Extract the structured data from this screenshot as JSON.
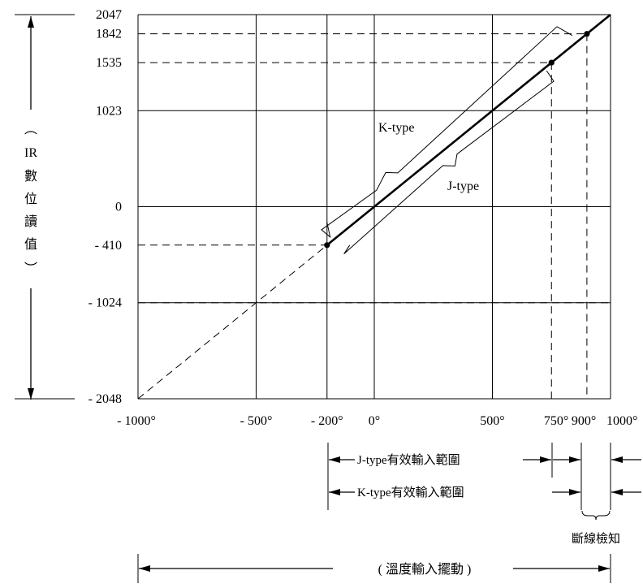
{
  "chart_data": {
    "type": "line",
    "xlabel": "( 溫度輸入擺動 )",
    "ylabel_chars": [
      "︵",
      "IR",
      "數",
      "位",
      "讀",
      "值",
      "︶"
    ],
    "xlim": [
      -1000,
      1000
    ],
    "ylim": [
      -2048,
      2047
    ],
    "x_ticks": [
      {
        "value": -1000,
        "label": "- 1000°"
      },
      {
        "value": -500,
        "label": "- 500°"
      },
      {
        "value": -200,
        "label": "- 200°"
      },
      {
        "value": 0,
        "label": "0°"
      },
      {
        "value": 500,
        "label": "500°"
      },
      {
        "value": 750,
        "label": "750°"
      },
      {
        "value": 900,
        "label": "900°"
      },
      {
        "value": 1000,
        "label": "1000°"
      }
    ],
    "y_ticks": [
      {
        "value": 2047,
        "label": "2047"
      },
      {
        "value": 1842,
        "label": "1842"
      },
      {
        "value": 1535,
        "label": "1535"
      },
      {
        "value": 1023,
        "label": "1023"
      },
      {
        "value": 0,
        "label": "0"
      },
      {
        "value": -410,
        "label": "- 410"
      },
      {
        "value": -1024,
        "label": "- 1024"
      },
      {
        "value": -2048,
        "label": "- 2048"
      }
    ],
    "grid_x": [
      -1000,
      -500,
      -200,
      0,
      500,
      1000
    ],
    "grid_y": [
      -2048,
      -1024,
      0,
      1023,
      2047
    ],
    "series": [
      {
        "style": "solid-bold",
        "x": [
          -200,
          1000
        ],
        "y": [
          -410,
          2047
        ]
      },
      {
        "style": "dashed",
        "x": [
          -1000,
          -200
        ],
        "y": [
          -2048,
          -410
        ]
      }
    ],
    "points": [
      {
        "x": -200,
        "y": -410
      },
      {
        "x": 750,
        "y": 1535
      },
      {
        "x": 900,
        "y": 1842
      }
    ],
    "reference_lines": [
      {
        "from": [
          -1000,
          1842
        ],
        "to": [
          900,
          1842
        ]
      },
      {
        "from": [
          -1000,
          1535
        ],
        "to": [
          750,
          1535
        ]
      },
      {
        "from": [
          -1000,
          -410
        ],
        "to": [
          -200,
          -410
        ]
      },
      {
        "from": [
          -1000,
          -1024
        ],
        "to": [
          1000,
          -1024
        ]
      },
      {
        "from": [
          -500,
          -1024
        ],
        "to": [
          -500,
          -2048
        ]
      },
      {
        "from": [
          750,
          1535
        ],
        "to": [
          750,
          -2048
        ]
      },
      {
        "from": [
          900,
          1842
        ],
        "to": [
          900,
          -2048
        ]
      }
    ],
    "annotations": {
      "k_type": "K-type",
      "j_type": "J-type"
    },
    "ranges": [
      {
        "label": "J-type有效輸入範圍",
        "from": -200,
        "to": 750
      },
      {
        "label": "K-type有效輸入範圍",
        "from": -200,
        "to": 900
      }
    ],
    "break_detect_label": "斷線檢知"
  }
}
